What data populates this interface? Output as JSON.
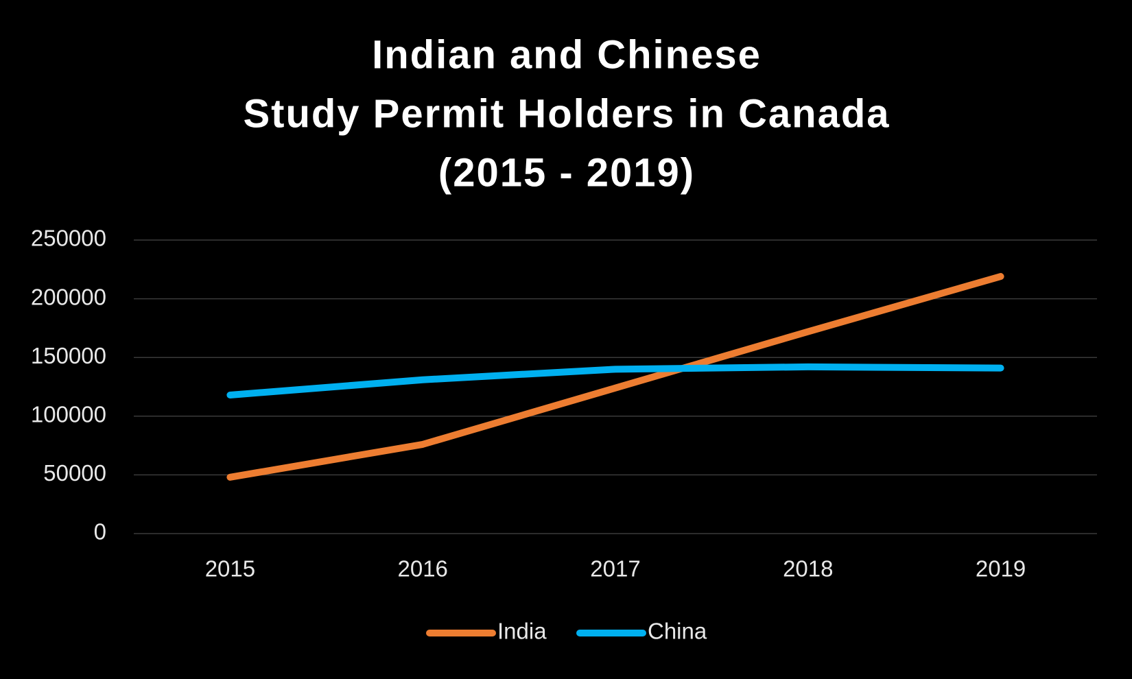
{
  "chart_data": {
    "type": "line",
    "title": [
      "Indian and Chinese",
      "Study Permit Holders in Canada",
      "(2015 - 2019)"
    ],
    "categories": [
      "2015",
      "2016",
      "2017",
      "2018",
      "2019"
    ],
    "series": [
      {
        "name": "India",
        "color": "#ed7d31",
        "values": [
          48000,
          76000,
          124000,
          172000,
          219000
        ]
      },
      {
        "name": "China",
        "color": "#00b0f0",
        "values": [
          118000,
          131000,
          140000,
          142000,
          141000
        ]
      }
    ],
    "ylim": [
      0,
      250000
    ],
    "yticks": [
      0,
      50000,
      100000,
      150000,
      200000,
      250000
    ],
    "grid": true,
    "legend": "bottom"
  }
}
